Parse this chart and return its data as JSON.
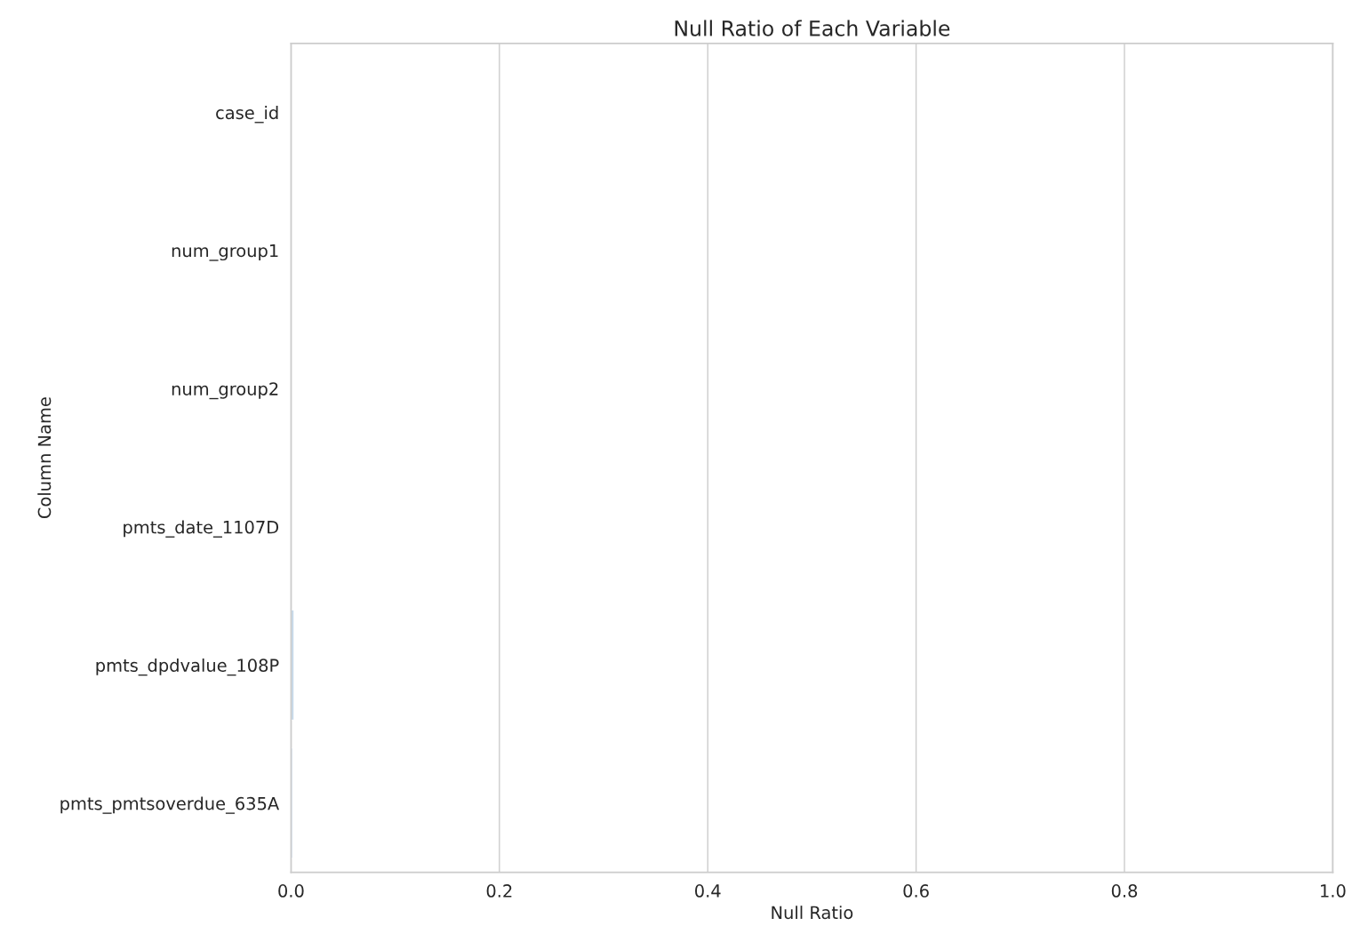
{
  "chart_data": {
    "type": "bar",
    "orientation": "horizontal",
    "title": "Null Ratio of Each Variable",
    "xlabel": "Null Ratio",
    "ylabel": "Column Name",
    "categories": [
      "case_id",
      "num_group1",
      "num_group2",
      "pmts_date_1107D",
      "pmts_dpdvalue_108P",
      "pmts_pmtsoverdue_635A"
    ],
    "values": [
      0,
      0,
      0,
      0,
      0.003,
      0.002
    ],
    "colors": [
      null,
      null,
      null,
      null,
      "#c6d9ea",
      "#dde8f3"
    ],
    "xlim": [
      0,
      1
    ],
    "xticks": [
      {
        "value": 0,
        "label": "0.0"
      },
      0.2,
      0.4,
      0.6,
      0.8,
      {
        "value": 1,
        "label": "1.0"
      }
    ],
    "grid": "x"
  }
}
